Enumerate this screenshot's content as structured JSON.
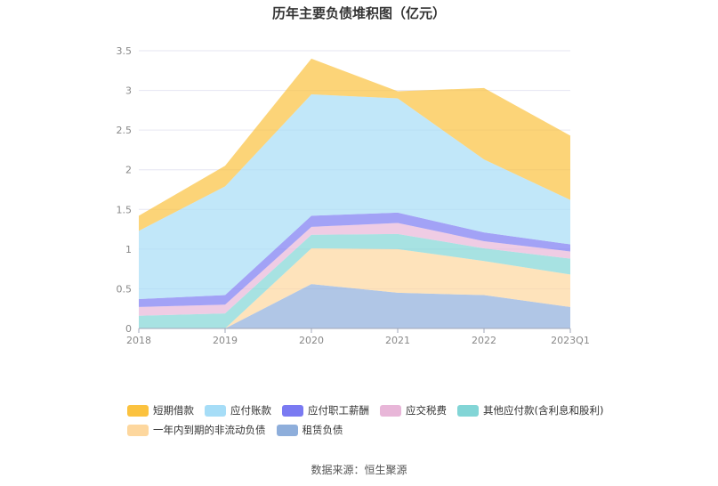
{
  "chart_data": {
    "type": "area",
    "stacked": true,
    "title": "历年主要负债堆积图（亿元）",
    "categories": [
      "2018",
      "2019",
      "2020",
      "2021",
      "2022",
      "2023Q1"
    ],
    "ylim": [
      0,
      3.5
    ],
    "yticks": [
      "0",
      "0.5",
      "1",
      "1.5",
      "2",
      "2.5",
      "3",
      "3.5"
    ],
    "grid": true,
    "legend_position": "bottom",
    "series": [
      {
        "name": "短期借款",
        "color": "#fbc23f",
        "values": [
          0.19,
          0.26,
          0.45,
          0.09,
          0.9,
          0.81
        ]
      },
      {
        "name": "应付账款",
        "color": "#a6ddf7",
        "values": [
          0.86,
          1.37,
          1.53,
          1.44,
          0.92,
          0.56
        ]
      },
      {
        "name": "应付职工薪酬",
        "color": "#7a7af2",
        "values": [
          0.1,
          0.12,
          0.14,
          0.13,
          0.11,
          0.09
        ]
      },
      {
        "name": "应交税费",
        "color": "#e8b6d8",
        "values": [
          0.11,
          0.11,
          0.1,
          0.14,
          0.09,
          0.09
        ]
      },
      {
        "name": "其他应付款(含利息和股利)",
        "color": "#82d5d6",
        "values": [
          0.16,
          0.19,
          0.17,
          0.19,
          0.16,
          0.2
        ]
      },
      {
        "name": "一年内到期的非流动负债",
        "color": "#fdd79e",
        "values": [
          0,
          0,
          0.45,
          0.55,
          0.43,
          0.41
        ]
      },
      {
        "name": "租赁负债",
        "color": "#8eaedb",
        "values": [
          0,
          0,
          0.56,
          0.45,
          0.42,
          0.27
        ]
      }
    ]
  },
  "source": "数据来源：恒生聚源"
}
